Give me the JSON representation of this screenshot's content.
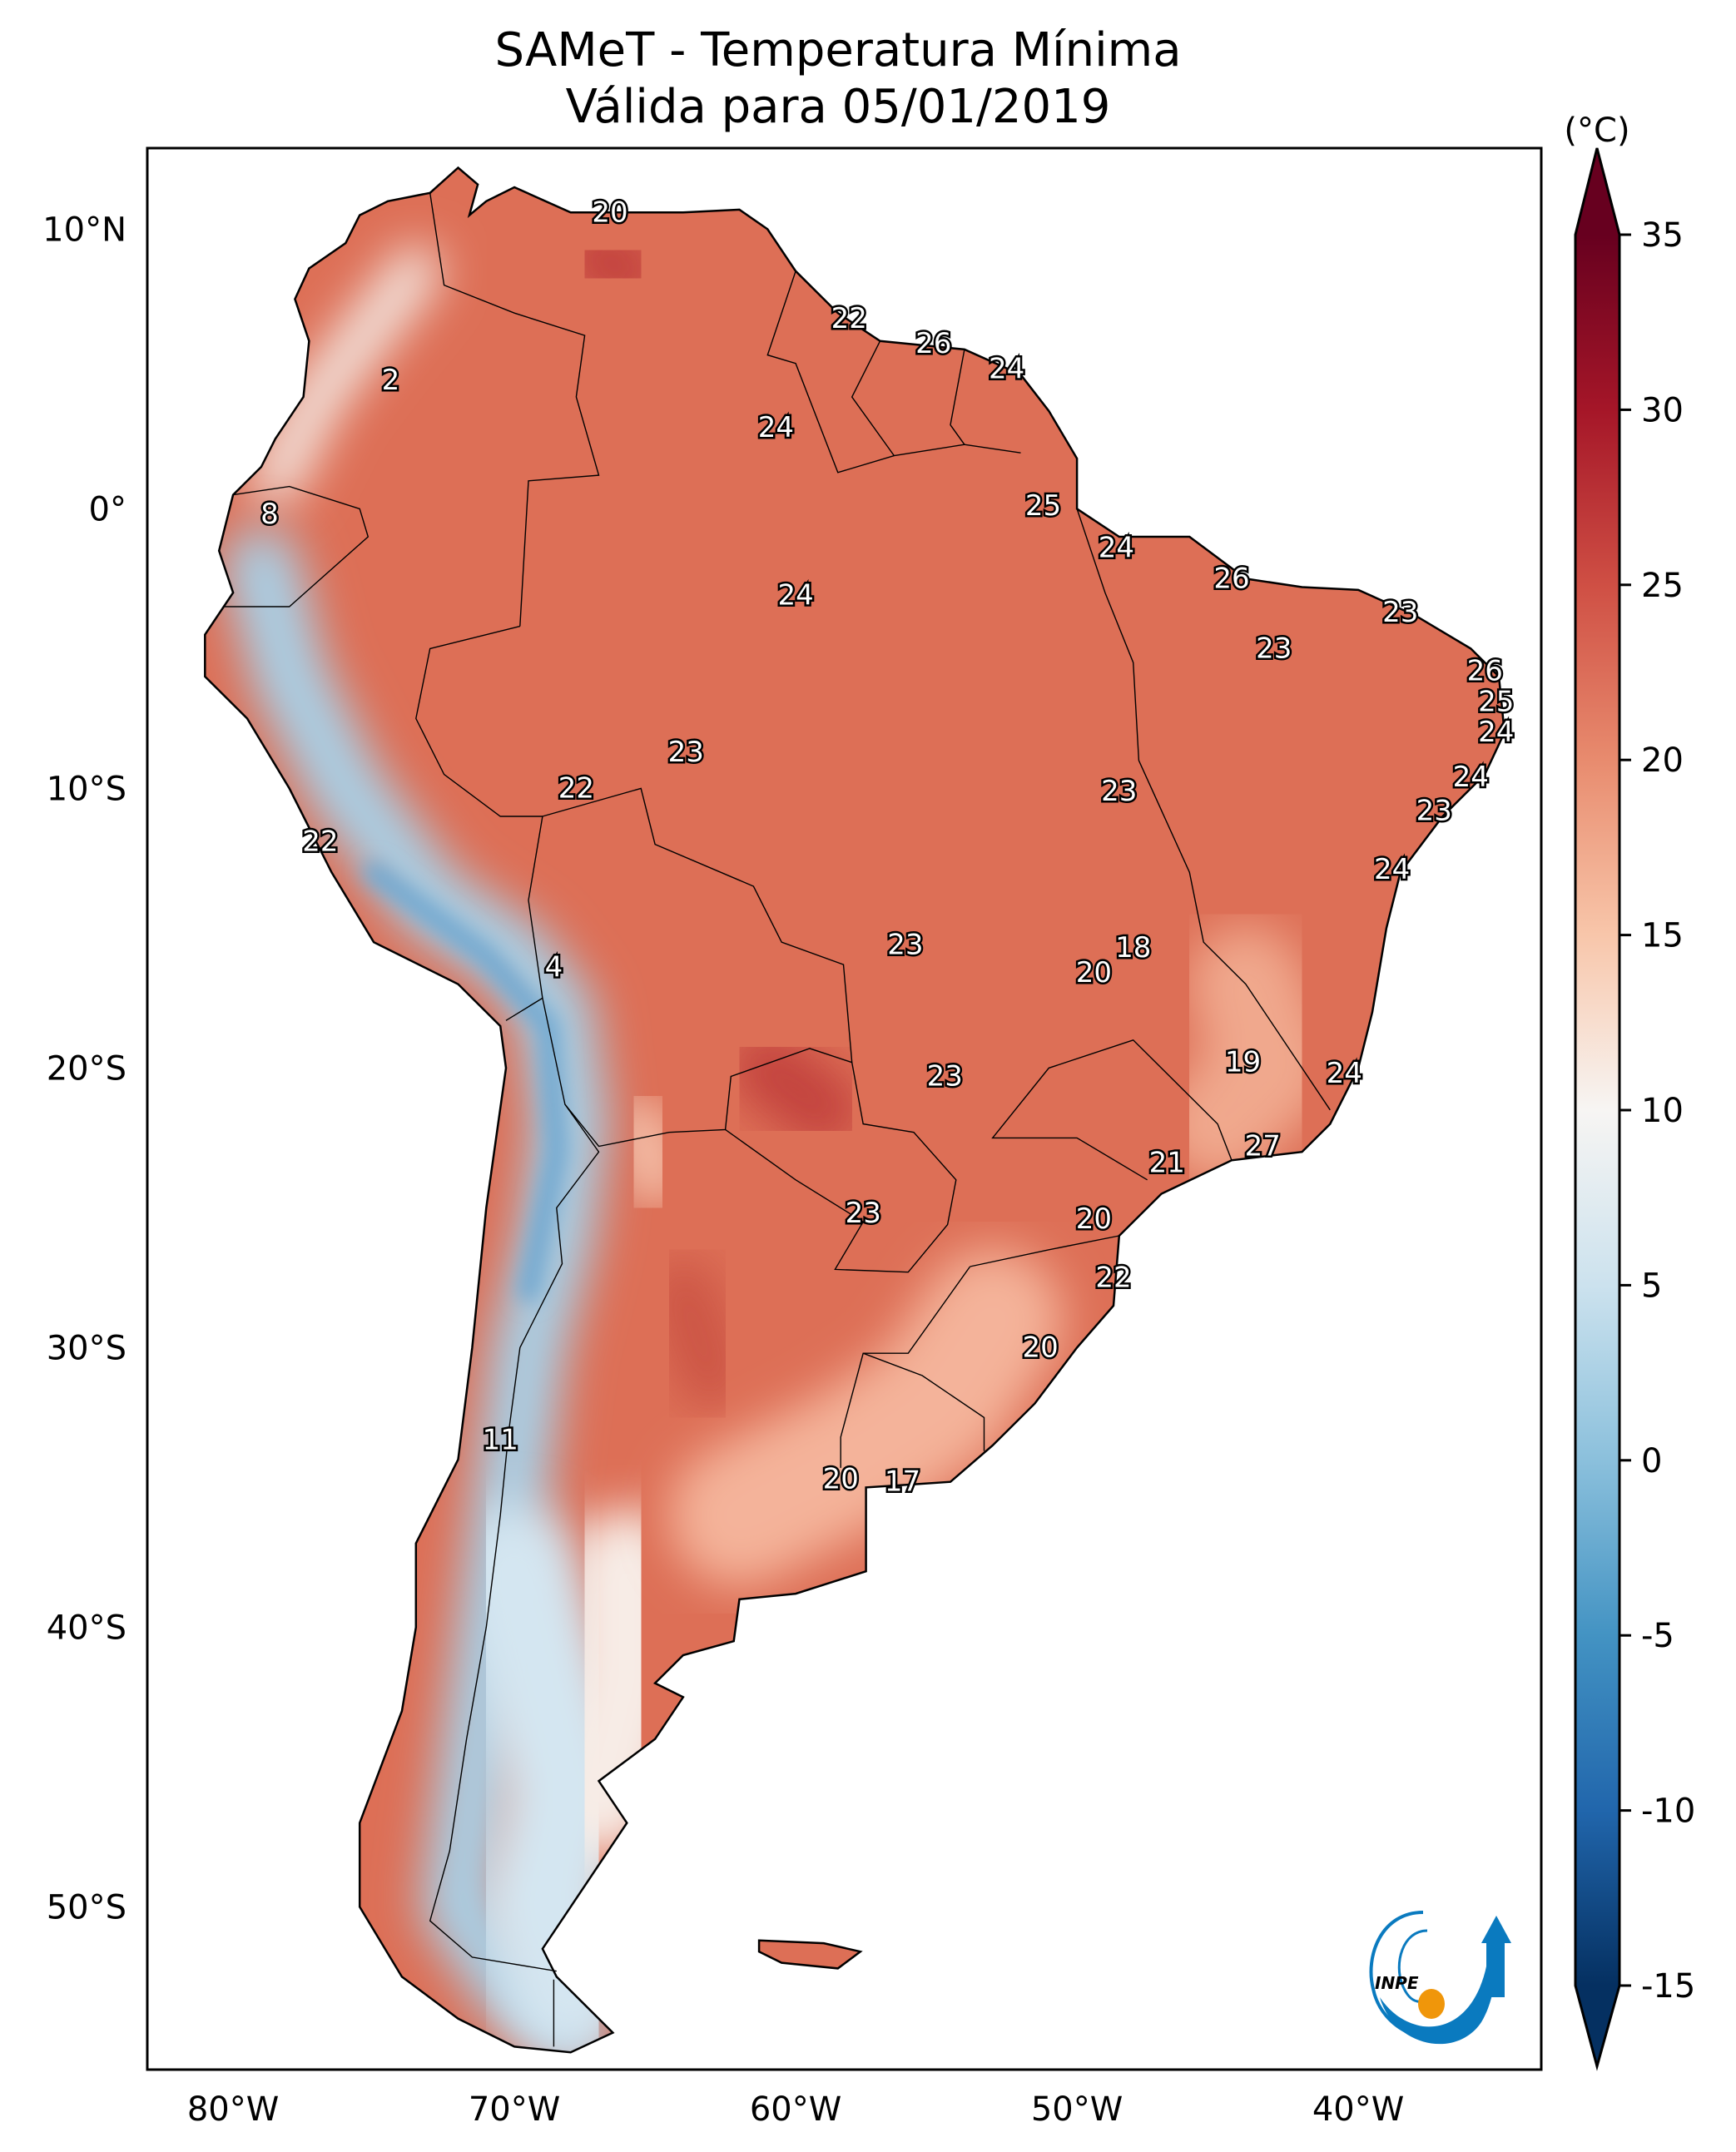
{
  "title": {
    "line1": "SAMeT - Temperatura Mínima",
    "line2": "Válida para 05/01/2019"
  },
  "colorbar": {
    "unit": "(°C)",
    "min": -15,
    "max": 35,
    "ticks": [
      "35",
      "30",
      "25",
      "20",
      "15",
      "10",
      "5",
      "0",
      "-5",
      "-10",
      "-15"
    ],
    "colormap": "RdBu_r",
    "extend": "both"
  },
  "axes": {
    "lat_ticks": [
      "10°N",
      "0°",
      "10°S",
      "20°S",
      "30°S",
      "40°S",
      "50°S"
    ],
    "lon_ticks": [
      "80°W",
      "70°W",
      "60°W",
      "50°W",
      "40°W"
    ]
  },
  "logo": {
    "text": "INPE",
    "color_blue": "#0a7abf",
    "color_orange": "#f0960a"
  },
  "chart_data": {
    "type": "heatmap",
    "variable": "Temperatura Mínima",
    "lon_range": [
      -83,
      -33.5
    ],
    "lat_range": [
      -55.8,
      12.9
    ],
    "value_range": [
      -15,
      35
    ],
    "station_labels": [
      {
        "value": "20",
        "lon": -66.6,
        "lat": 10.6
      },
      {
        "value": "22",
        "lon": -58.1,
        "lat": 6.8
      },
      {
        "value": "26",
        "lon": -55.1,
        "lat": 5.9
      },
      {
        "value": "24",
        "lon": -52.5,
        "lat": 5.0
      },
      {
        "value": "2",
        "lon": -74.4,
        "lat": 4.6
      },
      {
        "value": "24",
        "lon": -60.7,
        "lat": 2.9
      },
      {
        "value": "8",
        "lon": -78.7,
        "lat": -0.2
      },
      {
        "value": "25",
        "lon": -51.2,
        "lat": 0.1
      },
      {
        "value": "24",
        "lon": -48.6,
        "lat": -1.4
      },
      {
        "value": "26",
        "lon": -44.5,
        "lat": -2.5
      },
      {
        "value": "24",
        "lon": -60.0,
        "lat": -3.1
      },
      {
        "value": "23",
        "lon": -38.5,
        "lat": -3.7
      },
      {
        "value": "23",
        "lon": -43.0,
        "lat": -5.0
      },
      {
        "value": "26",
        "lon": -35.5,
        "lat": -5.8
      },
      {
        "value": "25",
        "lon": -35.1,
        "lat": -6.9
      },
      {
        "value": "24",
        "lon": -35.1,
        "lat": -8.0
      },
      {
        "value": "23",
        "lon": -63.9,
        "lat": -8.7
      },
      {
        "value": "22",
        "lon": -67.8,
        "lat": -10.0
      },
      {
        "value": "24",
        "lon": -36.0,
        "lat": -9.6
      },
      {
        "value": "23",
        "lon": -48.5,
        "lat": -10.1
      },
      {
        "value": "23",
        "lon": -37.3,
        "lat": -10.8
      },
      {
        "value": "22",
        "lon": -76.9,
        "lat": -11.9
      },
      {
        "value": "24",
        "lon": -38.8,
        "lat": -12.9
      },
      {
        "value": "23",
        "lon": -56.1,
        "lat": -15.6
      },
      {
        "value": "18",
        "lon": -48.0,
        "lat": -15.7
      },
      {
        "value": "4",
        "lon": -68.6,
        "lat": -16.4
      },
      {
        "value": "20",
        "lon": -49.4,
        "lat": -16.6
      },
      {
        "value": "19",
        "lon": -44.1,
        "lat": -19.8
      },
      {
        "value": "24",
        "lon": -40.5,
        "lat": -20.2
      },
      {
        "value": "23",
        "lon": -54.7,
        "lat": -20.3
      },
      {
        "value": "27",
        "lon": -43.4,
        "lat": -22.8
      },
      {
        "value": "21",
        "lon": -46.8,
        "lat": -23.4
      },
      {
        "value": "23",
        "lon": -57.6,
        "lat": -25.2
      },
      {
        "value": "20",
        "lon": -49.4,
        "lat": -25.4
      },
      {
        "value": "22",
        "lon": -48.7,
        "lat": -27.5
      },
      {
        "value": "20",
        "lon": -51.3,
        "lat": -30.0
      },
      {
        "value": "11",
        "lon": -70.5,
        "lat": -33.3
      },
      {
        "value": "20",
        "lon": -58.4,
        "lat": -34.7
      },
      {
        "value": "17",
        "lon": -56.2,
        "lat": -34.8
      }
    ]
  }
}
